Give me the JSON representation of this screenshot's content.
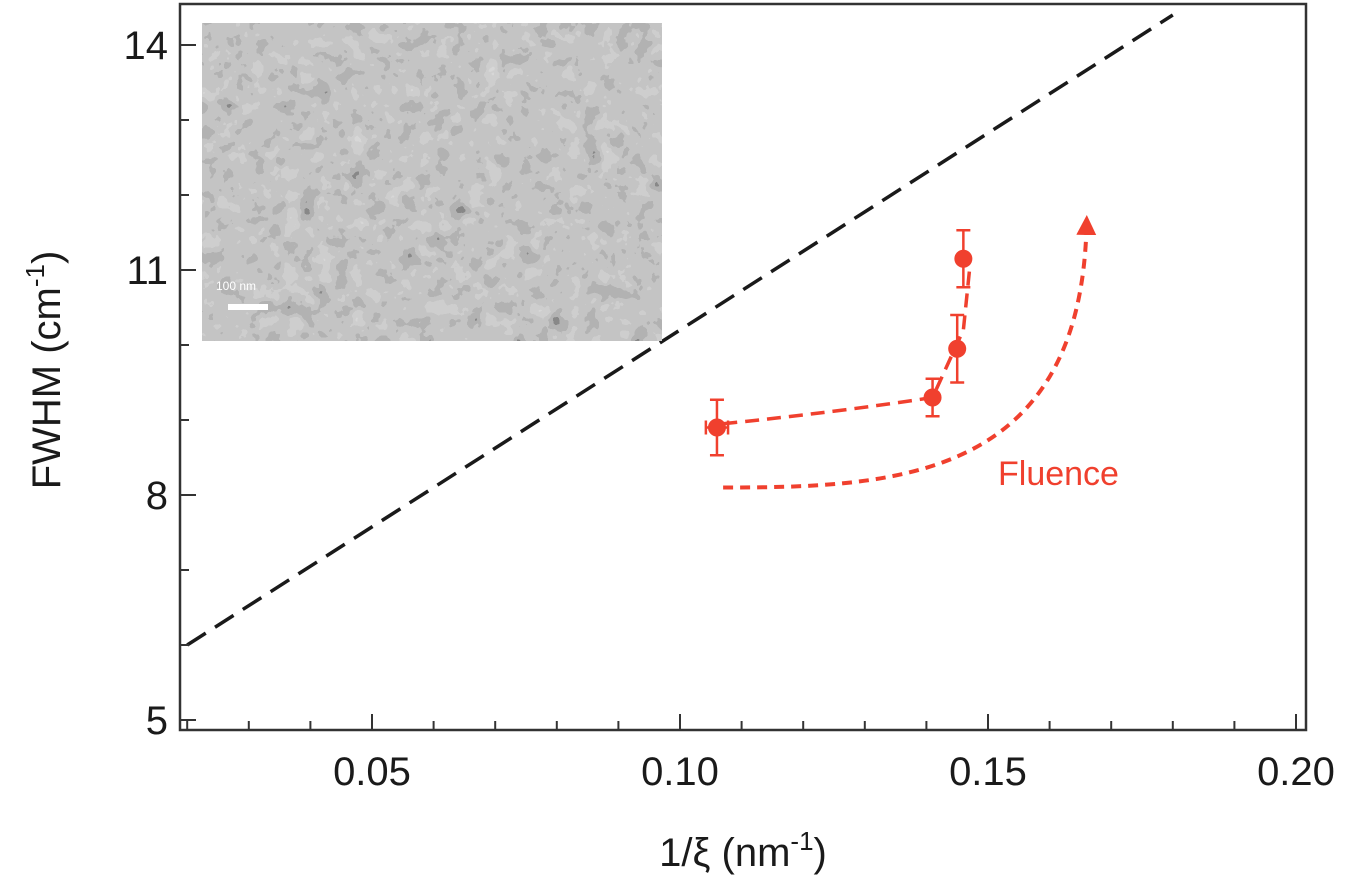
{
  "chart_data": {
    "type": "scatter",
    "title": "",
    "xlabel": {
      "main": "1/ξ (nm",
      "sup": "-1",
      "tail": ")"
    },
    "ylabel": {
      "main": "FWHM (cm",
      "sup": "-1",
      "tail": ")"
    },
    "xlim": [
      0.0,
      0.2
    ],
    "ylim": [
      5.0,
      14.5
    ],
    "x_ticks": [
      {
        "value": 0.05,
        "label": "0.05"
      },
      {
        "value": 0.1,
        "label": "0.10"
      },
      {
        "value": 0.15,
        "label": "0.15"
      },
      {
        "value": 0.2,
        "label": "0.20"
      }
    ],
    "y_ticks": [
      {
        "value": 5,
        "label": "5"
      },
      {
        "value": 8,
        "label": "8"
      },
      {
        "value": 11,
        "label": "11"
      },
      {
        "value": 14,
        "label": "14"
      }
    ],
    "grid": false,
    "series": [
      {
        "marker_color": "#f0402e",
        "points": [
          {
            "x": 0.106,
            "y": 8.9,
            "xerr": 0.0018,
            "yerr": 0.37
          },
          {
            "x": 0.141,
            "y": 9.3,
            "xerr": 0.0,
            "yerr": 0.25
          },
          {
            "x": 0.145,
            "y": 9.95,
            "xerr": 0.0,
            "yerr": 0.45
          },
          {
            "x": 0.146,
            "y": 11.15,
            "xerr": 0.0,
            "yerr": 0.38
          }
        ]
      }
    ],
    "reference_line": {
      "style": "dashed",
      "color": "#1a1a1a",
      "from": [
        0.02,
        6.0
      ],
      "to": [
        0.18,
        14.4
      ]
    },
    "trend_line": {
      "style": "dashed",
      "color": "#f0402e",
      "points": [
        [
          0.107,
          8.95
        ],
        [
          0.125,
          9.1
        ],
        [
          0.141,
          9.3
        ],
        [
          0.146,
          10.2
        ],
        [
          0.147,
          11.0
        ]
      ]
    },
    "annotation": {
      "text": "Fluence",
      "color": "#f0402e",
      "arrow_curve": [
        [
          0.107,
          8.1
        ],
        [
          0.135,
          8.1
        ],
        [
          0.165,
          8.2
        ],
        [
          0.166,
          11.6
        ]
      ]
    },
    "inset": {
      "scale_bar_label": "100 nm"
    }
  }
}
